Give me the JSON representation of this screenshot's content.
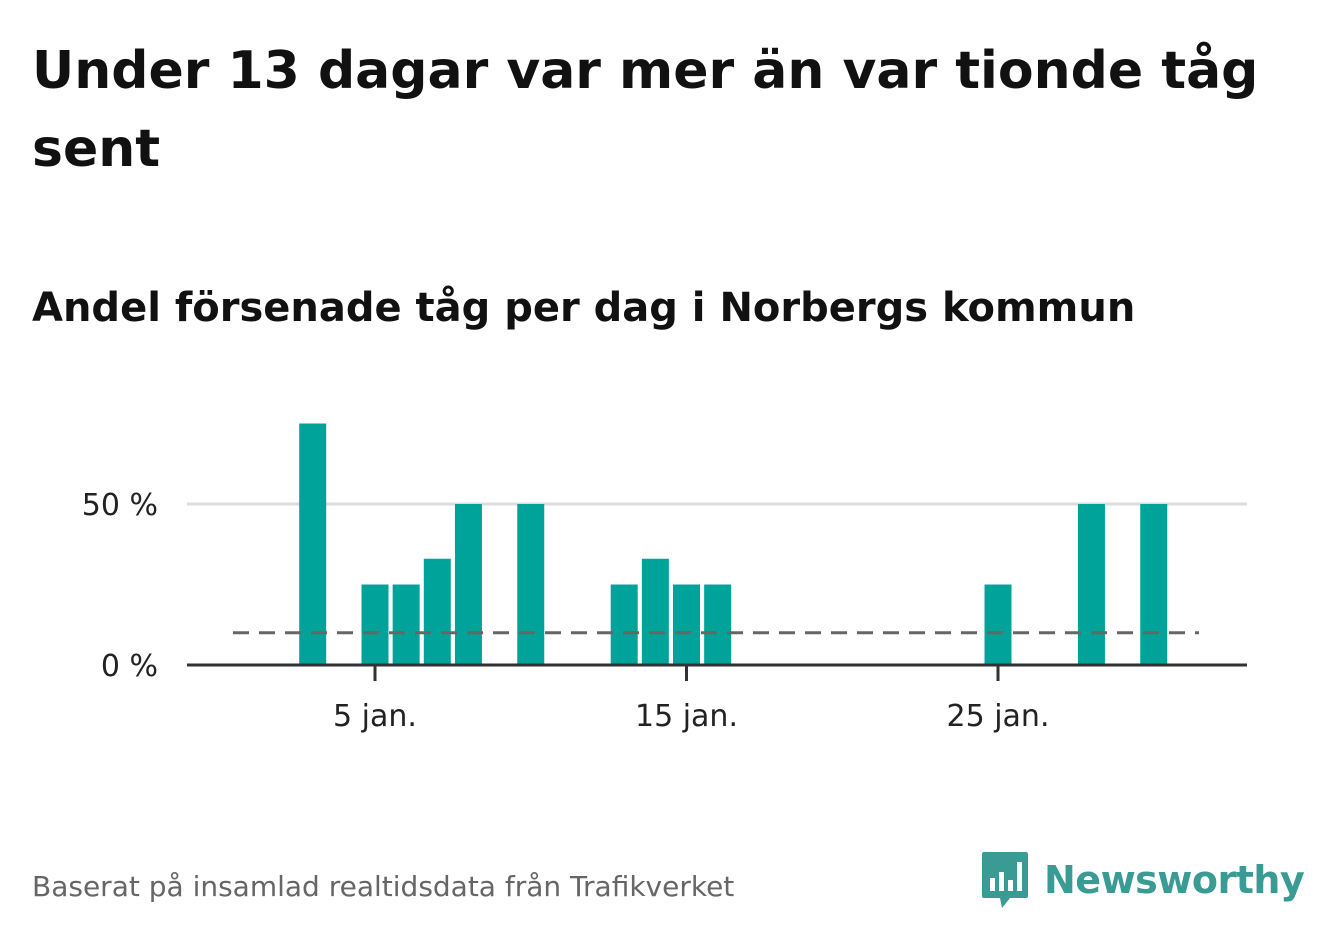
{
  "title": "Under 13 dagar var mer än var tionde tåg sent",
  "subtitle": "Andel försenade tåg per dag i Norbergs kommun",
  "footer": "Baserat på insamlad realtidsdata från Trafikverket",
  "logo": {
    "text": "Newsworthy",
    "icon": "bar-chart-speech-bubble-icon",
    "color": "#3a9a94"
  },
  "chart_data": {
    "type": "bar",
    "title": "Under 13 dagar var mer än var tionde tåg sent",
    "subtitle": "Andel försenade tåg per dag i Norbergs kommun",
    "x": [
      1,
      2,
      3,
      4,
      5,
      6,
      7,
      8,
      9,
      10,
      11,
      12,
      13,
      14,
      15,
      16,
      17,
      18,
      19,
      20,
      21,
      22,
      23,
      24,
      25,
      26,
      27,
      28,
      29,
      30,
      31
    ],
    "values": [
      0,
      0,
      75,
      0,
      25,
      25,
      33,
      50,
      0,
      50,
      0,
      0,
      25,
      33,
      25,
      25,
      0,
      0,
      0,
      0,
      0,
      0,
      0,
      0,
      25,
      0,
      0,
      50,
      0,
      50,
      0
    ],
    "reference_line": {
      "value": 10,
      "style": "dashed"
    },
    "ylim": [
      0,
      75
    ],
    "yticks": [
      0,
      50
    ],
    "ytick_labels": [
      "0 %",
      "50 %"
    ],
    "xticks": [
      5,
      15,
      25
    ],
    "xtick_labels": [
      "5 jan.",
      "15 jan.",
      "25 jan."
    ],
    "xlabel": "",
    "ylabel": "",
    "grid": "horizontal",
    "colors": {
      "bar": "#00a39a",
      "grid": "#dddddd",
      "axis": "#333333",
      "reference": "#666666"
    }
  }
}
